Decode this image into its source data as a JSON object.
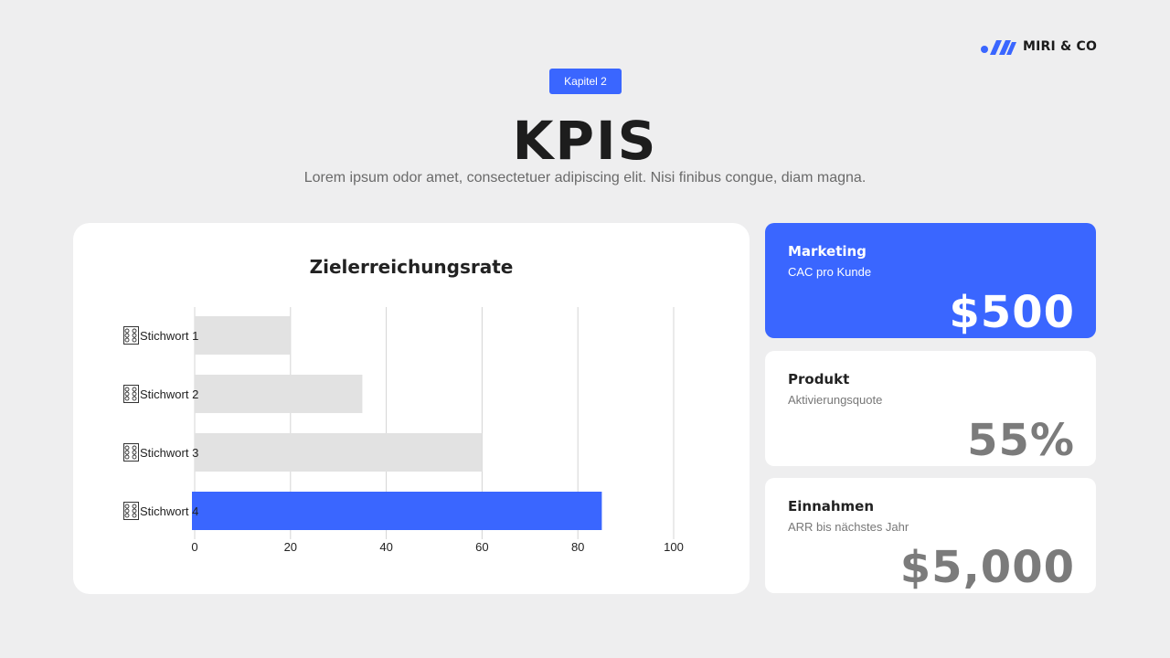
{
  "brand": {
    "name": "MIRI & CO",
    "logo_icon": "brand-logo-icon"
  },
  "chapter": "Kapitel 2",
  "title": "KPIS",
  "subtitle": "Lorem ipsum odor amet, consectetuer adipiscing elit. Nisi finibus congue, diam magna.",
  "colors": {
    "background": "#EEEEEF",
    "accent": "#3A66FF",
    "bar": "#E2E2E2",
    "card": "#FFFFFF",
    "value_muted": "#7B7B7B"
  },
  "chart_data": {
    "type": "bar",
    "orientation": "horizontal",
    "title": "Zielerreichungsrate",
    "categories": [
      "Stichwort 1",
      "Stichwort 2",
      "Stichwort 3",
      "Stichwort 4"
    ],
    "category_icon": "gauge-icon",
    "values": [
      20,
      35,
      60,
      85
    ],
    "highlight_index": 3,
    "xlim": [
      0,
      100
    ],
    "xticks": [
      0,
      20,
      40,
      60,
      80,
      100
    ],
    "grid": true,
    "legend": "none"
  },
  "kpis": [
    {
      "label": "Marketing",
      "sub": "CAC pro Kunde",
      "value": "$500",
      "accent": true
    },
    {
      "label": "Produkt",
      "sub": "Aktivierungsquote",
      "value": "55%",
      "accent": false
    },
    {
      "label": "Einnahmen",
      "sub": "ARR bis nächstes Jahr",
      "value": "$5,000",
      "accent": false
    }
  ]
}
